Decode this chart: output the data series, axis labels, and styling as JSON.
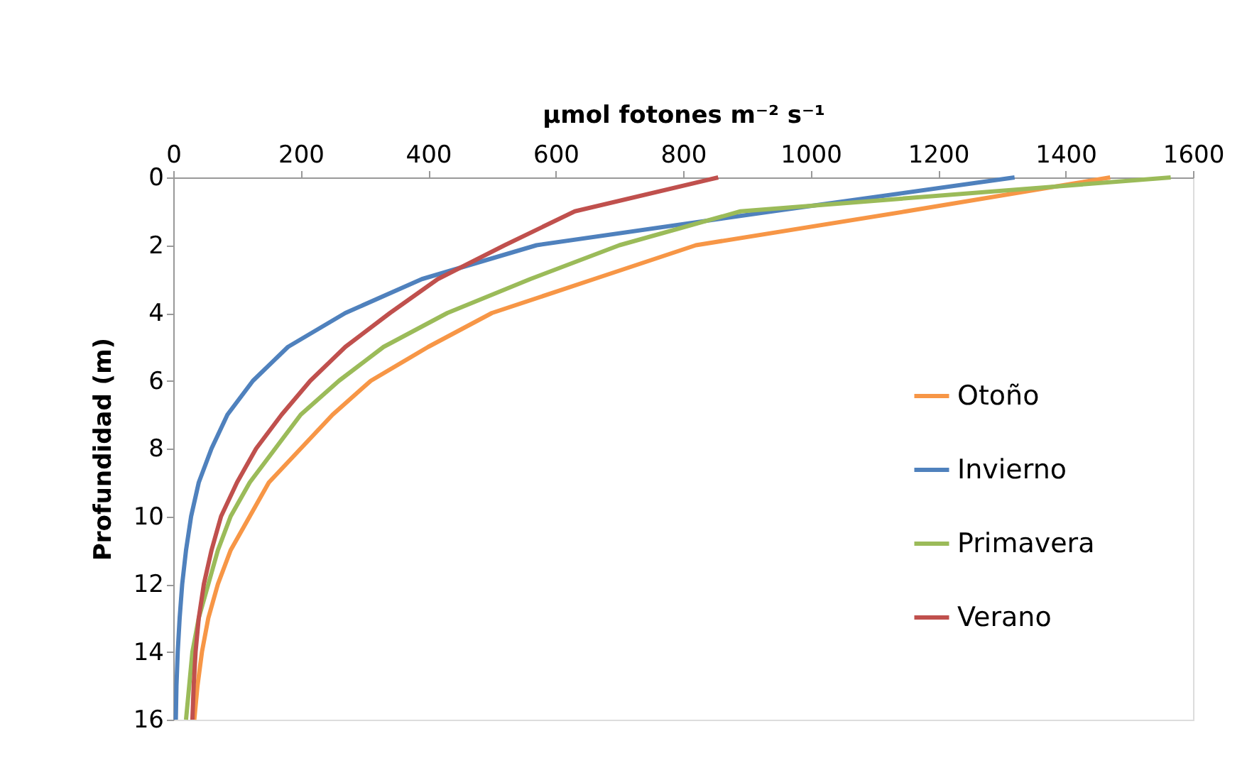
{
  "chart_data": {
    "type": "line",
    "xlabel": "μmol fotones m⁻² s⁻¹",
    "ylabel": "Profundidad (m)",
    "xlim": [
      0,
      1600
    ],
    "xticks": [
      0,
      200,
      400,
      600,
      800,
      1000,
      1200,
      1400,
      1600
    ],
    "ylim": [
      16,
      0
    ],
    "yticks": [
      0,
      2,
      4,
      6,
      8,
      10,
      12,
      14,
      16
    ],
    "grid": false,
    "legend": "right",
    "line_style": "solid",
    "marker": "none",
    "series": [
      {
        "name": "Otoño",
        "color": "#f79646",
        "x": [
          1470,
          1150,
          820,
          660,
          500,
          400,
          310,
          250,
          200,
          150,
          120,
          90,
          70,
          55,
          45,
          38,
          33
        ],
        "values": [
          0,
          1,
          2,
          3,
          4,
          5,
          6,
          7,
          8,
          9,
          10,
          11,
          12,
          13,
          14,
          15,
          16
        ]
      },
      {
        "name": "Invierno",
        "color": "#4f81bd",
        "x": [
          1320,
          940,
          570,
          390,
          270,
          180,
          125,
          85,
          60,
          40,
          28,
          20,
          14,
          10,
          7,
          5,
          4
        ],
        "values": [
          0,
          1,
          2,
          3,
          4,
          5,
          6,
          7,
          8,
          9,
          10,
          11,
          12,
          13,
          14,
          15,
          16
        ]
      },
      {
        "name": "Primavera",
        "color": "#9bbb59",
        "x": [
          1565,
          890,
          700,
          560,
          430,
          330,
          260,
          200,
          160,
          120,
          90,
          70,
          55,
          40,
          30,
          25,
          20
        ],
        "values": [
          0,
          1,
          2,
          3,
          4,
          5,
          6,
          7,
          8,
          9,
          10,
          11,
          12,
          13,
          14,
          15,
          16
        ]
      },
      {
        "name": "Verano",
        "color": "#c0504d",
        "x": [
          855,
          630,
          520,
          415,
          340,
          270,
          215,
          170,
          130,
          100,
          75,
          60,
          48,
          40,
          35,
          32,
          30
        ],
        "values": [
          0,
          1,
          2,
          3,
          4,
          5,
          6,
          7,
          8,
          9,
          10,
          11,
          12,
          13,
          14,
          15,
          16
        ]
      }
    ]
  }
}
